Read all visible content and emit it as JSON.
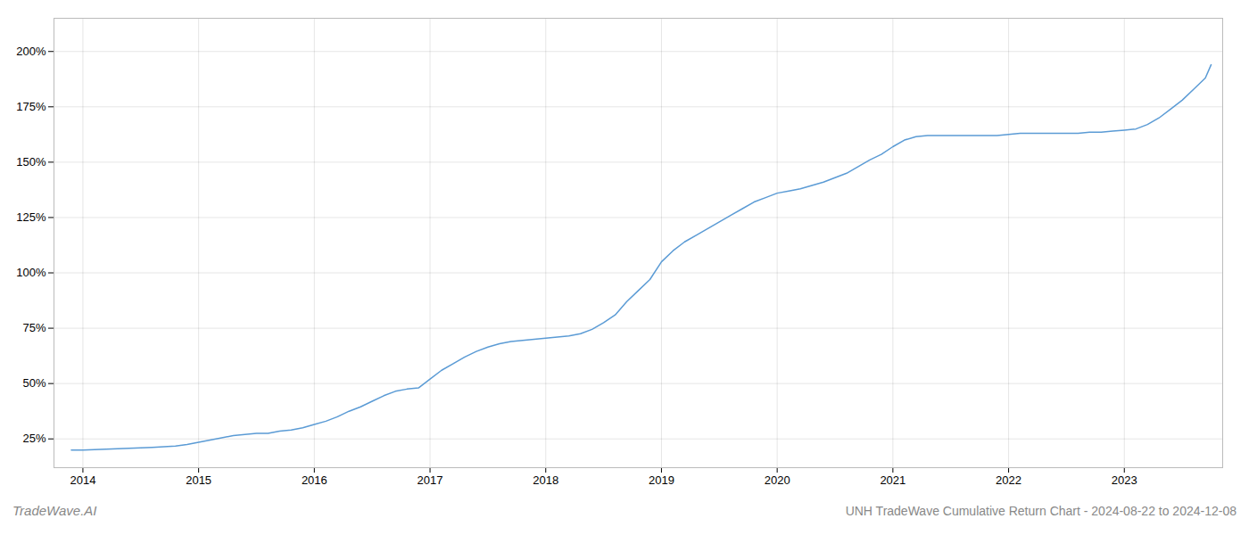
{
  "chart_data": {
    "type": "line",
    "title": "UNH TradeWave Cumulative Return Chart - 2024-08-22 to 2024-12-08",
    "annotations": [
      "TradeWave.AI"
    ],
    "color": "#5b9bd5",
    "grid": true,
    "x": [
      2013.9,
      2014.0,
      2014.1,
      2014.2,
      2014.3,
      2014.4,
      2014.5,
      2014.6,
      2014.7,
      2014.8,
      2014.9,
      2015.0,
      2015.1,
      2015.2,
      2015.3,
      2015.4,
      2015.5,
      2015.6,
      2015.7,
      2015.8,
      2015.9,
      2016.0,
      2016.1,
      2016.2,
      2016.3,
      2016.4,
      2016.5,
      2016.6,
      2016.7,
      2016.8,
      2016.9,
      2017.0,
      2017.1,
      2017.2,
      2017.3,
      2017.4,
      2017.5,
      2017.6,
      2017.7,
      2017.8,
      2017.9,
      2018.0,
      2018.1,
      2018.2,
      2018.3,
      2018.4,
      2018.5,
      2018.6,
      2018.7,
      2018.8,
      2018.9,
      2019.0,
      2019.1,
      2019.2,
      2019.3,
      2019.4,
      2019.5,
      2019.6,
      2019.7,
      2019.8,
      2019.9,
      2020.0,
      2020.1,
      2020.2,
      2020.3,
      2020.4,
      2020.5,
      2020.6,
      2020.7,
      2020.8,
      2020.9,
      2021.0,
      2021.1,
      2021.2,
      2021.3,
      2021.4,
      2021.5,
      2021.6,
      2021.7,
      2021.8,
      2021.9,
      2022.0,
      2022.1,
      2022.2,
      2022.3,
      2022.4,
      2022.5,
      2022.6,
      2022.7,
      2022.8,
      2022.9,
      2023.0,
      2023.1,
      2023.2,
      2023.3,
      2023.4,
      2023.5,
      2023.6,
      2023.7,
      2023.75
    ],
    "values": [
      20.0,
      20.0,
      20.2,
      20.4,
      20.6,
      20.8,
      21.0,
      21.2,
      21.5,
      21.8,
      22.5,
      23.5,
      24.5,
      25.5,
      26.5,
      27.0,
      27.5,
      27.5,
      28.5,
      29.0,
      30.0,
      31.5,
      33.0,
      35.0,
      37.5,
      39.5,
      42.0,
      44.5,
      46.5,
      47.5,
      48.0,
      52.0,
      56.0,
      59.0,
      62.0,
      64.5,
      66.5,
      68.0,
      69.0,
      69.5,
      70.0,
      70.5,
      71.0,
      71.5,
      72.5,
      74.5,
      77.5,
      81.0,
      87.0,
      92.0,
      97.0,
      105.0,
      110.0,
      114.0,
      117.0,
      120.0,
      123.0,
      126.0,
      129.0,
      132.0,
      134.0,
      136.0,
      137.0,
      138.0,
      139.5,
      141.0,
      143.0,
      145.0,
      148.0,
      151.0,
      153.5,
      157.0,
      160.0,
      161.5,
      162.0,
      162.0,
      162.0,
      162.0,
      162.0,
      162.0,
      162.0,
      162.5,
      163.0,
      163.0,
      163.0,
      163.0,
      163.0,
      163.0,
      163.5,
      163.5,
      164.0,
      164.5,
      165.0,
      167.0,
      170.0,
      174.0,
      178.0,
      183.0,
      188.0,
      194.0
    ],
    "xlim": [
      2013.75,
      2023.85
    ],
    "xticks": [
      2014,
      2015,
      2016,
      2017,
      2018,
      2019,
      2020,
      2021,
      2022,
      2023
    ],
    "ylim": [
      12,
      215
    ],
    "yticks": [
      {
        "value": 25,
        "label": "25%"
      },
      {
        "value": 50,
        "label": "50%"
      },
      {
        "value": 75,
        "label": "75%"
      },
      {
        "value": 100,
        "label": "100%"
      },
      {
        "value": 125,
        "label": "125%"
      },
      {
        "value": 150,
        "label": "150%"
      },
      {
        "value": 175,
        "label": "175%"
      },
      {
        "value": 200,
        "label": "200%"
      }
    ]
  }
}
